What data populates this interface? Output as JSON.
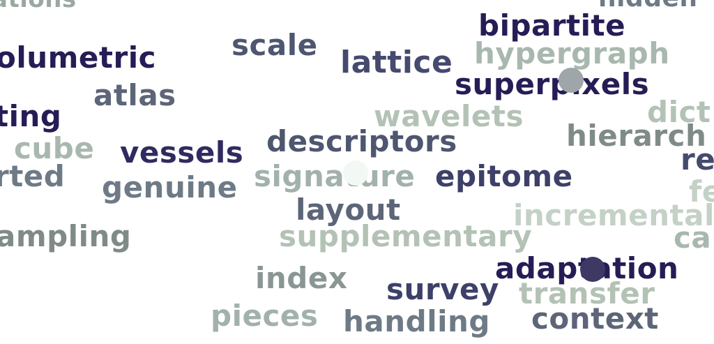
{
  "words": [
    {
      "text": "ations",
      "color": "#9aa8a0"
    },
    {
      "text": "hidden",
      "color": "#6e7a86"
    },
    {
      "text": "bipartite",
      "color": "#251d55"
    },
    {
      "text": "scale",
      "color": "#4e5670"
    },
    {
      "text": "olumetric",
      "color": "#251d55"
    },
    {
      "text": "lattice",
      "color": "#454a6e"
    },
    {
      "text": "hypergraph",
      "color": "#a9b8ae"
    },
    {
      "text": "superpixels",
      "color": "#251d55"
    },
    {
      "text": "atlas",
      "color": "#5d6578"
    },
    {
      "text": "ting",
      "color": "#251d55"
    },
    {
      "text": "wavelets",
      "color": "#b3c2b5"
    },
    {
      "text": "dict",
      "color": "#b3c2b5"
    },
    {
      "text": "hierarch",
      "color": "#7f8b88"
    },
    {
      "text": "cube",
      "color": "#a9b8ae"
    },
    {
      "text": "vessels",
      "color": "#2f2b60"
    },
    {
      "text": "descriptors",
      "color": "#4e5670"
    },
    {
      "text": "re",
      "color": "#454a6e"
    },
    {
      "text": "rted",
      "color": "#6e7a86"
    },
    {
      "text": "genuine",
      "color": "#6e7a86"
    },
    {
      "text": "signature",
      "color": "#a2b1ab"
    },
    {
      "text": "epitome",
      "color": "#3d4068"
    },
    {
      "text": "fe",
      "color": "#c4d1c6"
    },
    {
      "text": "layout",
      "color": "#5d6578"
    },
    {
      "text": "incremental",
      "color": "#c4d1c6"
    },
    {
      "text": "ampling",
      "color": "#7f8b88"
    },
    {
      "text": "supplementary",
      "color": "#b3c2b5"
    },
    {
      "text": "ca",
      "color": "#a9b8ae"
    },
    {
      "text": "adaptation",
      "color": "#251d55"
    },
    {
      "text": "index",
      "color": "#8a9693"
    },
    {
      "text": "survey",
      "color": "#3d4068"
    },
    {
      "text": "transfer",
      "color": "#b3c2b5"
    },
    {
      "text": "pieces",
      "color": "#a2b1ab"
    },
    {
      "text": "handling",
      "color": "#6e7a86"
    },
    {
      "text": "context",
      "color": "#5d6578"
    }
  ],
  "markers": [
    {
      "name": "marker-superpixels",
      "color": "#9ea6aa"
    },
    {
      "name": "marker-signature",
      "color": "#f2f8f4"
    },
    {
      "name": "marker-adaptation",
      "color": "#3d3864"
    }
  ]
}
